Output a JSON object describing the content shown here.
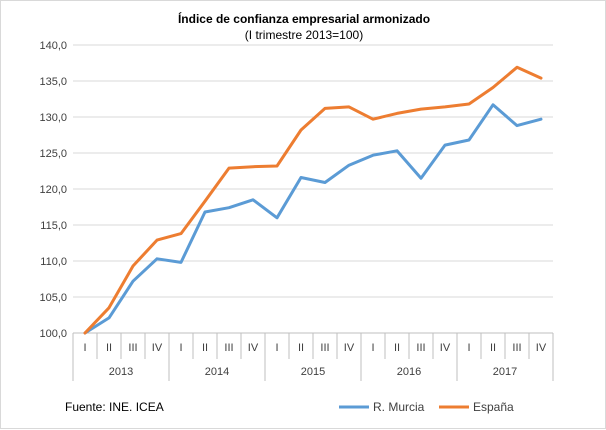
{
  "chart_data": {
    "type": "line",
    "title": "Índice de confianza empresarial armonizado",
    "subtitle": "(I trimestre 2013=100)",
    "xlabel": "",
    "ylabel": "",
    "ylim": [
      100,
      140
    ],
    "y_ticks": [
      "100,0",
      "105,0",
      "110,0",
      "115,0",
      "120,0",
      "125,0",
      "130,0",
      "135,0",
      "140,0"
    ],
    "y_tick_values": [
      100,
      105,
      110,
      115,
      120,
      125,
      130,
      135,
      140
    ],
    "quarters": [
      "I",
      "II",
      "III",
      "IV",
      "I",
      "II",
      "III",
      "IV",
      "I",
      "II",
      "III",
      "IV",
      "I",
      "II",
      "III",
      "IV",
      "I",
      "II",
      "III",
      "IV"
    ],
    "years": [
      "2013",
      "2014",
      "2015",
      "2016",
      "2017"
    ],
    "grid": "horizontal",
    "legend_position": "bottom-right",
    "series": [
      {
        "name": "R. Murcia",
        "color": "#5b9bd5",
        "values": [
          100.0,
          102.1,
          107.2,
          110.3,
          109.8,
          116.8,
          117.4,
          118.5,
          116.0,
          121.6,
          120.9,
          123.3,
          124.7,
          125.3,
          121.5,
          126.1,
          126.8,
          131.7,
          128.8,
          129.7
        ]
      },
      {
        "name": "España",
        "color": "#ed7d31",
        "values": [
          100.0,
          103.5,
          109.3,
          112.9,
          113.8,
          118.3,
          122.9,
          123.1,
          123.2,
          128.2,
          131.2,
          131.4,
          129.7,
          130.5,
          131.1,
          131.4,
          131.8,
          134.1,
          136.9,
          135.4
        ]
      }
    ]
  },
  "source": "Fuente: INE. ICEA"
}
